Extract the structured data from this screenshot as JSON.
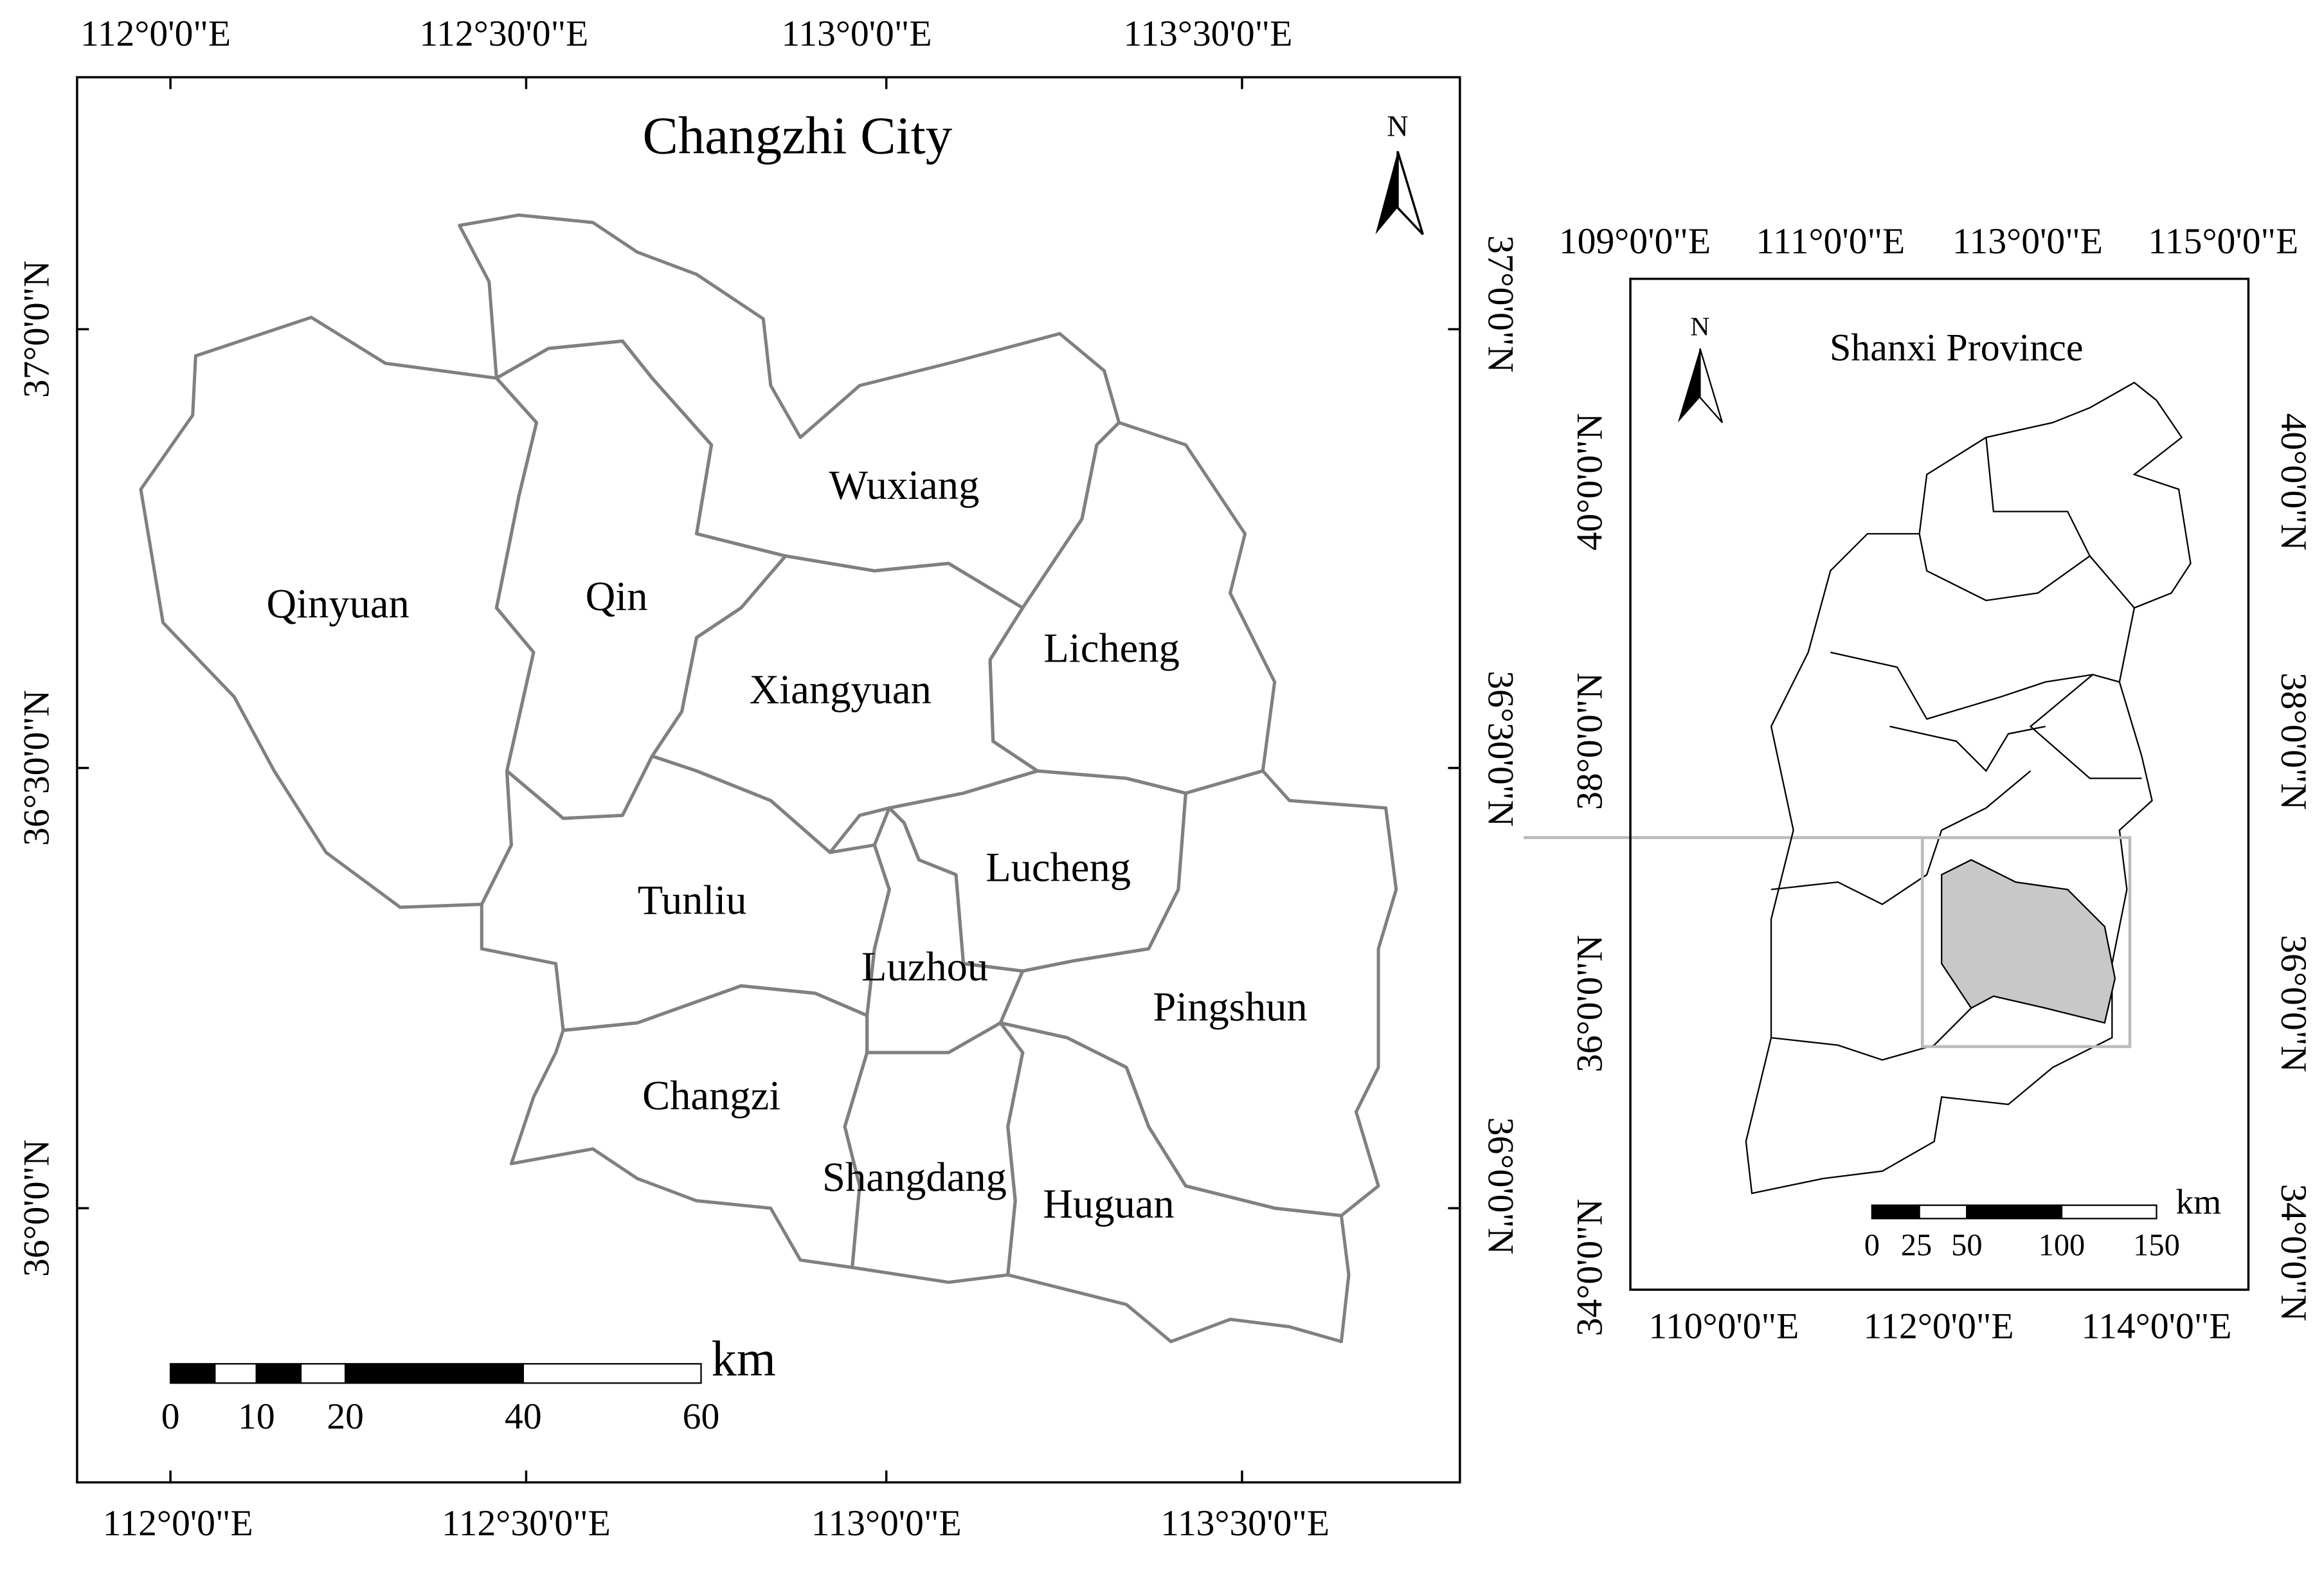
{
  "main_map": {
    "title": "Changzhi City",
    "north": "N",
    "top_labels": [
      "112°0'0\"E",
      "112°30'0\"E",
      "113°0'0\"E",
      "113°30'0\"E"
    ],
    "bottom_labels": [
      "112°0'0\"E",
      "112°30'0\"E",
      "113°0'0\"E",
      "113°30'0\"E"
    ],
    "left_labels": [
      "37°0'0\"N",
      "36°30'0\"N",
      "36°0'0\"N"
    ],
    "right_labels": [
      "37°0'0\"N",
      "36°30'0\"N",
      "36°0'0\"N"
    ],
    "districts": [
      "Qinyuan",
      "Qin",
      "Wuxiang",
      "Licheng",
      "Xiangyuan",
      "Tunliu",
      "Lucheng",
      "Luzhou",
      "Pingshun",
      "Changzi",
      "Shangdang",
      "Huguan"
    ],
    "scale": {
      "unit": "km",
      "labels": [
        "0",
        "10",
        "20",
        "40",
        "60"
      ]
    }
  },
  "inset_map": {
    "title": "Shanxi Province",
    "north": "N",
    "top_labels": [
      "109°0'0\"E",
      "111°0'0\"E",
      "113°0'0\"E",
      "115°0'0\"E"
    ],
    "bottom_labels": [
      "110°0'0\"E",
      "112°0'0\"E",
      "114°0'0\"E"
    ],
    "left_labels": [
      "40°0'0\"N",
      "38°0'0\"N",
      "36°0'0\"N",
      "34°0'0\"N"
    ],
    "right_labels": [
      "40°0'0\"N",
      "38°0'0\"N",
      "36°0'0\"N",
      "34°0'0\"N"
    ],
    "scale": {
      "unit": "km",
      "labels": [
        "0",
        "25",
        "50",
        "100",
        "150"
      ]
    }
  }
}
